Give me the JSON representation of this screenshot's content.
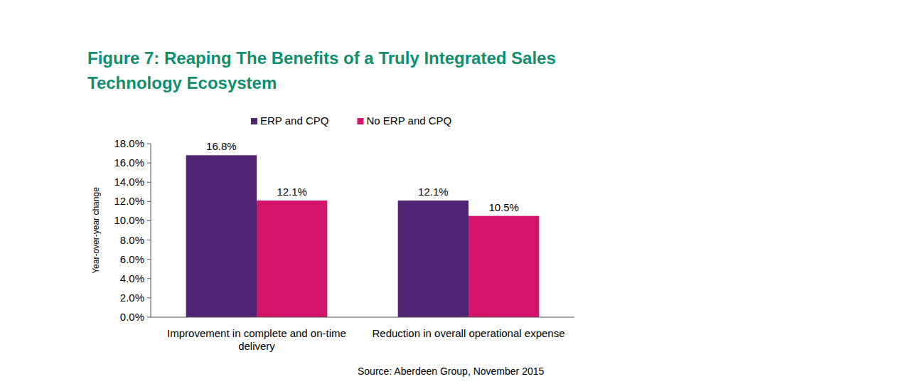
{
  "chart_data": {
    "type": "bar",
    "title": "Figure 7: Reaping The Benefits of a Truly Integrated Sales Technology Ecosystem",
    "y_label": "Year-over-year change",
    "annotations": [
      "Source: Aberdeen Group, November 2015"
    ],
    "categories": [
      "Improvement in complete and on-time delivery",
      "Reduction in overall operational expense"
    ],
    "series": [
      {
        "name": "ERP and CPQ",
        "color": "#512375",
        "values": [
          16.8,
          12.1
        ],
        "value_labels": [
          "16.8%",
          "12.1%"
        ]
      },
      {
        "name": "No ERP and CPQ",
        "color": "#d4146a",
        "values": [
          12.1,
          10.5
        ],
        "value_labels": [
          "12.1%",
          "10.5%"
        ]
      }
    ],
    "ylim": [
      0,
      18
    ],
    "yticks": [
      {
        "value": 0,
        "label": "0.0%"
      },
      {
        "value": 2,
        "label": "2.0%"
      },
      {
        "value": 4,
        "label": "4.0%"
      },
      {
        "value": 6,
        "label": "6.0%"
      },
      {
        "value": 8,
        "label": "8.0%"
      },
      {
        "value": 10,
        "label": "10.0%"
      },
      {
        "value": 12,
        "label": "12.0%"
      },
      {
        "value": 14,
        "label": "14.0%"
      },
      {
        "value": 16,
        "label": "16.0%"
      },
      {
        "value": 18,
        "label": "18.0%"
      }
    ],
    "grid": false,
    "legend": "top",
    "data_labels": true
  }
}
